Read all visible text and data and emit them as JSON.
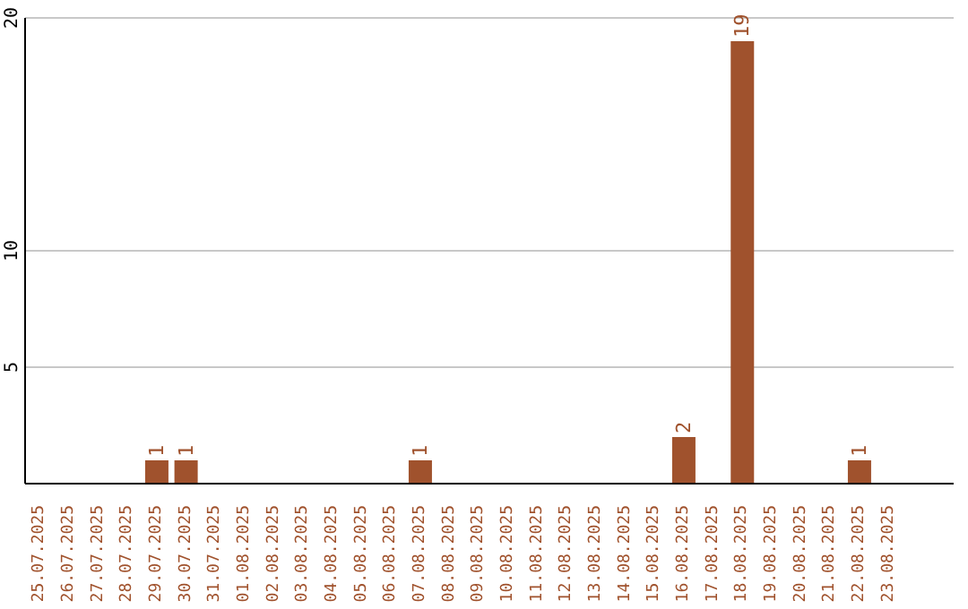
{
  "chart_data": {
    "type": "bar",
    "categories": [
      "25.07.2025",
      "26.07.2025",
      "27.07.2025",
      "28.07.2025",
      "29.07.2025",
      "30.07.2025",
      "31.07.2025",
      "01.08.2025",
      "02.08.2025",
      "03.08.2025",
      "04.08.2025",
      "05.08.2025",
      "06.08.2025",
      "07.08.2025",
      "08.08.2025",
      "09.08.2025",
      "10.08.2025",
      "11.08.2025",
      "12.08.2025",
      "13.08.2025",
      "14.08.2025",
      "15.08.2025",
      "16.08.2025",
      "17.08.2025",
      "18.08.2025",
      "19.08.2025",
      "20.08.2025",
      "21.08.2025",
      "22.08.2025",
      "23.08.2025"
    ],
    "values": [
      0,
      0,
      0,
      0,
      1,
      1,
      0,
      0,
      0,
      0,
      0,
      0,
      0,
      1,
      0,
      0,
      0,
      0,
      0,
      0,
      0,
      0,
      2,
      0,
      19,
      0,
      0,
      0,
      1,
      0
    ],
    "value_labels": [
      null,
      null,
      null,
      null,
      "1",
      "1",
      null,
      null,
      null,
      null,
      null,
      null,
      null,
      "1",
      null,
      null,
      null,
      null,
      null,
      null,
      null,
      null,
      "2",
      null,
      "19",
      null,
      null,
      null,
      "1",
      null
    ],
    "color": "#a0522d",
    "ylim": [
      0,
      20
    ],
    "yticks": [
      5,
      10,
      20
    ],
    "grid": "y"
  }
}
